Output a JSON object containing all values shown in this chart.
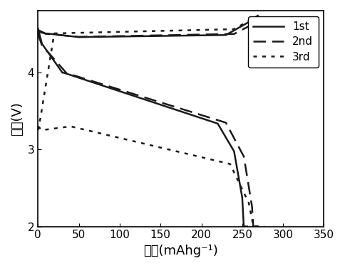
{
  "title": "",
  "xlabel": "容量(mAhg⁻¹)",
  "ylabel": "电压(V)",
  "xlim": [
    0,
    350
  ],
  "ylim": [
    2,
    4.8
  ],
  "xticks": [
    0,
    50,
    100,
    150,
    200,
    250,
    300,
    350
  ],
  "yticks": [
    2,
    3,
    4
  ],
  "background_color": "#ffffff",
  "legend_labels": [
    "1st",
    "2nd",
    "3rd"
  ],
  "line_color": "#1a1a1a",
  "line_width": 1.8,
  "font_size": 13
}
